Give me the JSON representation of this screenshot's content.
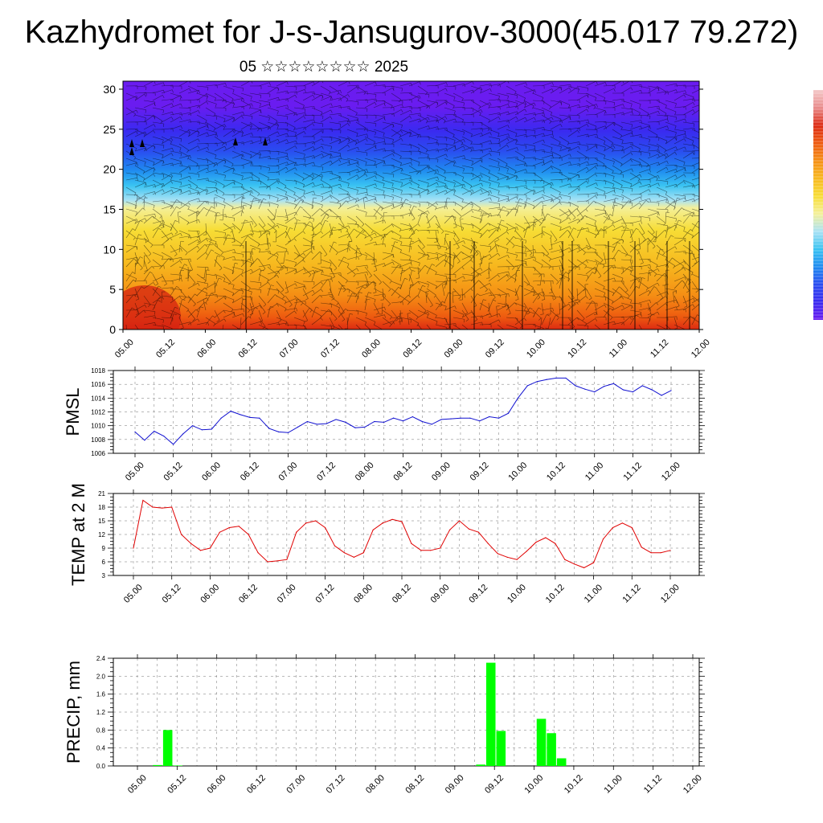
{
  "page": {
    "title": "Kazhydromet for J-s-Jansugurov-3000(45.017 79.272)",
    "subtitle": "05 ☆☆☆☆☆☆☆☆ 2025"
  },
  "time_ticks": [
    "05.00",
    "05.12",
    "06.00",
    "06.12",
    "07.00",
    "07.12",
    "08.00",
    "08.12",
    "09.00",
    "09.12",
    "10.00",
    "10.12",
    "11.00",
    "11.12",
    "12.00"
  ],
  "chart_data": [
    {
      "type": "heatmap",
      "name": "cross-section",
      "x_ticks": [
        "05.00",
        "05.12",
        "06.00",
        "06.12",
        "07.00",
        "07.12",
        "08.00",
        "08.12",
        "09.00",
        "09.12",
        "10.00",
        "10.12",
        "11.00",
        "11.12",
        "12.00"
      ],
      "ylim": [
        0,
        31
      ],
      "y_ticks": [
        0,
        5,
        10,
        15,
        20,
        25,
        30
      ],
      "colorbar_colors": [
        "#6a1cf0",
        "#3a2af0",
        "#2a4cf0",
        "#1f8bf0",
        "#39c3f2",
        "#a9e2f4",
        "#f4f09a",
        "#f7dd35",
        "#f7b81e",
        "#f58f14",
        "#ee5a10",
        "#dc2a12",
        "#e88a8a",
        "#f4c9c9"
      ],
      "colorbar_labels": [],
      "wind_barbs": true
    },
    {
      "type": "line",
      "name": "pmsl",
      "ylabel": "PMSL",
      "ylim": [
        1006,
        1018
      ],
      "y_ticks": [
        1006,
        1008,
        1010,
        1012,
        1014,
        1016,
        1018
      ],
      "x_ticks": [
        "05.00",
        "05.12",
        "06.00",
        "06.12",
        "07.00",
        "07.12",
        "08.00",
        "08.12",
        "09.00",
        "09.12",
        "10.00",
        "10.12",
        "11.00",
        "11.12",
        "12.00"
      ],
      "line_color": "#1010d0",
      "values": [
        1009.1,
        1007.9,
        1009.2,
        1008.5,
        1007.3,
        1008.8,
        1010.0,
        1009.4,
        1009.5,
        1011.1,
        1012.1,
        1011.6,
        1011.2,
        1011.1,
        1009.6,
        1009.1,
        1009.0,
        1009.8,
        1010.6,
        1010.2,
        1010.3,
        1010.9,
        1010.5,
        1009.7,
        1009.8,
        1010.6,
        1010.5,
        1011.1,
        1010.7,
        1011.3,
        1010.6,
        1010.2,
        1010.9,
        1011.0,
        1011.1,
        1011.1,
        1010.7,
        1011.3,
        1011.1,
        1011.8,
        1014.0,
        1015.8,
        1016.4,
        1016.7,
        1016.9,
        1016.9,
        1015.8,
        1015.3,
        1014.9,
        1015.7,
        1016.1,
        1015.2,
        1014.9,
        1015.8,
        1015.2,
        1014.4,
        1015.1
      ]
    },
    {
      "type": "line",
      "name": "temp2m",
      "ylabel": "TEMP at 2 M",
      "ylim": [
        3,
        21
      ],
      "y_ticks": [
        3,
        6,
        9,
        12,
        15,
        18,
        21
      ],
      "x_ticks": [
        "05.00",
        "05.12",
        "06.00",
        "06.12",
        "07.00",
        "07.12",
        "08.00",
        "08.12",
        "09.00",
        "09.12",
        "10.00",
        "10.12",
        "11.00",
        "11.12",
        "12.00"
      ],
      "line_color": "#e00000",
      "values": [
        9.0,
        19.5,
        18.0,
        17.8,
        18.0,
        12.0,
        10.0,
        8.5,
        9.0,
        12.5,
        13.5,
        13.8,
        12.0,
        8.0,
        6.0,
        6.2,
        6.5,
        12.5,
        14.5,
        15.0,
        13.5,
        9.5,
        8.0,
        7.0,
        8.0,
        13.0,
        14.5,
        15.3,
        14.8,
        10.0,
        8.5,
        8.5,
        9.0,
        13.0,
        15.0,
        13.2,
        12.5,
        10.0,
        7.8,
        7.0,
        6.5,
        8.3,
        10.3,
        11.3,
        10.0,
        6.5,
        5.5,
        4.7,
        5.8,
        11.0,
        13.5,
        14.5,
        13.5,
        9.2,
        8.0,
        8.0,
        8.5
      ]
    },
    {
      "type": "bar",
      "name": "precip",
      "ylabel": "PRECIP, mm",
      "ylim": [
        0,
        2.4
      ],
      "y_ticks": [
        "0.0",
        "0.4",
        "0.8",
        "1.2",
        "1.6",
        "2.0",
        "2.4"
      ],
      "x_ticks": [
        "05.00",
        "05.12",
        "06.00",
        "06.12",
        "07.00",
        "07.12",
        "08.00",
        "08.12",
        "09.00",
        "09.12",
        "10.00",
        "10.12",
        "11.00",
        "11.12",
        "12.00"
      ],
      "bar_color": "#00ff00",
      "values": [
        0,
        0,
        0.02,
        0.8,
        0.01,
        0,
        0,
        0,
        0,
        0,
        0,
        0,
        0,
        0,
        0,
        0,
        0,
        0,
        0,
        0,
        0,
        0,
        0,
        0,
        0,
        0,
        0,
        0,
        0,
        0,
        0,
        0,
        0,
        0,
        0.03,
        2.3,
        0.78,
        0,
        0,
        0,
        1.05,
        0.73,
        0.17,
        0,
        0,
        0,
        0,
        0,
        0,
        0,
        0,
        0,
        0,
        0,
        0,
        0
      ]
    }
  ]
}
